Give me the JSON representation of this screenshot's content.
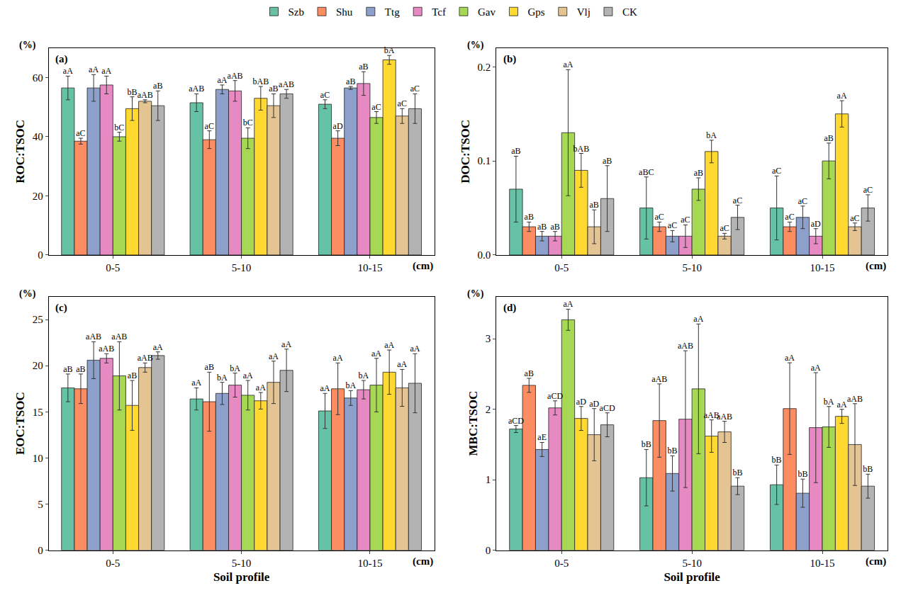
{
  "chart_data": [
    {
      "type": "bar",
      "title": "(a)",
      "legend": "top",
      "grid": false,
      "categories": [
        "0-5",
        "5-10",
        "10-15"
      ],
      "y_label": "ROC:TSOC",
      "annotations": [
        "(%)",
        "(cm)"
      ],
      "ylim": [
        0,
        70
      ],
      "yticks": [
        0,
        20,
        40,
        60
      ],
      "series": [
        {
          "name": "Szb",
          "color": "#66c2a5",
          "values": [
            56.5,
            51.5,
            51
          ],
          "errors": [
            4,
            3,
            1.5
          ],
          "letters": [
            "aA",
            "aAB",
            "aC"
          ]
        },
        {
          "name": "Shu",
          "color": "#fc8d62",
          "values": [
            38.5,
            39,
            39.5
          ],
          "errors": [
            1,
            3,
            2.5
          ],
          "letters": [
            "aC",
            "aC",
            "aD"
          ]
        },
        {
          "name": "Ttg",
          "color": "#8da0cb",
          "values": [
            56.5,
            56,
            56.5
          ],
          "errors": [
            4.5,
            1.5,
            0.5
          ],
          "letters": [
            "aA",
            "aA",
            "aB"
          ]
        },
        {
          "name": "Tcf",
          "color": "#e78ac3",
          "values": [
            57.5,
            55.5,
            58
          ],
          "errors": [
            3,
            3.5,
            4
          ],
          "letters": [
            "aA",
            "aAB",
            "aB"
          ]
        },
        {
          "name": "Gav",
          "color": "#a6d854",
          "values": [
            40,
            39.5,
            46.5
          ],
          "errors": [
            1.5,
            3.5,
            2
          ],
          "letters": [
            "bC",
            "bC",
            "aC"
          ]
        },
        {
          "name": "Gps",
          "color": "#ffd92f",
          "values": [
            49.5,
            53,
            66
          ],
          "errors": [
            4,
            4,
            1.5
          ],
          "letters": [
            "bB",
            "bAB",
            "bA"
          ]
        },
        {
          "name": "Vlj",
          "color": "#e5c494",
          "values": [
            52,
            50.5,
            47
          ],
          "errors": [
            0.5,
            4,
            2.5
          ],
          "letters": [
            "aAB",
            "aB",
            "aC"
          ]
        },
        {
          "name": "CK",
          "color": "#b3b3b3",
          "values": [
            50.5,
            54.5,
            49.5
          ],
          "errors": [
            5,
            1.5,
            5
          ],
          "letters": [
            "aB",
            "aAB",
            "aC"
          ]
        }
      ]
    },
    {
      "type": "bar",
      "title": "(b)",
      "grid": false,
      "categories": [
        "0-5",
        "5-10",
        "10-15"
      ],
      "y_label": "DOC:TSOC",
      "annotations": [
        "(%)",
        "(cm)"
      ],
      "ylim": [
        0,
        0.22
      ],
      "yticks": [
        {
          "value": 0,
          "label": "0.0"
        },
        0.1,
        0.2
      ],
      "series": [
        {
          "name": "Szb",
          "color": "#66c2a5",
          "values": [
            0.07,
            0.05,
            0.05
          ],
          "errors": [
            0.035,
            0.033,
            0.034
          ],
          "letters": [
            "aB",
            "aBC",
            "aC"
          ]
        },
        {
          "name": "Shu",
          "color": "#fc8d62",
          "values": [
            0.03,
            0.03,
            0.03
          ],
          "errors": [
            0.005,
            0.005,
            0.005
          ],
          "letters": [
            "aB",
            "aC",
            "aC"
          ]
        },
        {
          "name": "Ttg",
          "color": "#8da0cb",
          "values": [
            0.02,
            0.02,
            0.04
          ],
          "errors": [
            0.005,
            0.006,
            0.012
          ],
          "letters": [
            "aB",
            "aC",
            "aC"
          ]
        },
        {
          "name": "Tcf",
          "color": "#e78ac3",
          "values": [
            0.02,
            0.02,
            0.02
          ],
          "errors": [
            0.005,
            0.012,
            0.008
          ],
          "letters": [
            "aB",
            "aC",
            "aD"
          ]
        },
        {
          "name": "Gav",
          "color": "#a6d854",
          "values": [
            0.13,
            0.07,
            0.1
          ],
          "errors": [
            0.067,
            0.012,
            0.019
          ],
          "letters": [
            "aA",
            "aB",
            "aB"
          ]
        },
        {
          "name": "Gps",
          "color": "#ffd92f",
          "values": [
            0.09,
            0.11,
            0.15
          ],
          "errors": [
            0.018,
            0.012,
            0.014
          ],
          "letters": [
            "bAB",
            "bA",
            "aA"
          ]
        },
        {
          "name": "Vlj",
          "color": "#e5c494",
          "values": [
            0.03,
            0.02,
            0.03
          ],
          "errors": [
            0.018,
            0.003,
            0.004
          ],
          "letters": [
            "aB",
            "aC",
            "aC"
          ]
        },
        {
          "name": "CK",
          "color": "#b3b3b3",
          "values": [
            0.06,
            0.04,
            0.05
          ],
          "errors": [
            0.035,
            0.013,
            0.014
          ],
          "letters": [
            "aB",
            "aC",
            "aC"
          ]
        }
      ]
    },
    {
      "type": "bar",
      "title": "(c)",
      "grid": false,
      "categories": [
        "0-5",
        "5-10",
        "10-15"
      ],
      "x_label": "Soil profile",
      "y_label": "EOC:TSOC",
      "annotations": [
        "(%)",
        "(cm)"
      ],
      "ylim": [
        0,
        27.5
      ],
      "yticks": [
        0,
        5,
        10,
        15,
        20,
        25
      ],
      "series": [
        {
          "name": "Szb",
          "color": "#66c2a5",
          "values": [
            17.6,
            16.4,
            15.1
          ],
          "errors": [
            1.5,
            1.2,
            1.9
          ],
          "letters": [
            "aB",
            "aA",
            "aA"
          ]
        },
        {
          "name": "Shu",
          "color": "#fc8d62",
          "values": [
            17.5,
            16.1,
            17.5
          ],
          "errors": [
            1.6,
            3.2,
            2.8
          ],
          "letters": [
            "aB",
            "aB",
            "aA"
          ]
        },
        {
          "name": "Ttg",
          "color": "#8da0cb",
          "values": [
            20.6,
            17,
            16.5
          ],
          "errors": [
            2,
            1.2,
            0.8
          ],
          "letters": [
            "aAB",
            "bA",
            "bA"
          ]
        },
        {
          "name": "Tcf",
          "color": "#e78ac3",
          "values": [
            20.8,
            17.9,
            17.4
          ],
          "errors": [
            0.5,
            1.3,
            1
          ],
          "letters": [
            "aAB",
            "bA",
            "bA"
          ]
        },
        {
          "name": "Gav",
          "color": "#a6d854",
          "values": [
            18.9,
            16.8,
            17.9
          ],
          "errors": [
            3.7,
            1.6,
            2.9
          ],
          "letters": [
            "aAB",
            "aA",
            "aA"
          ]
        },
        {
          "name": "Gps",
          "color": "#ffd92f",
          "values": [
            15.7,
            16.2,
            19.3
          ],
          "errors": [
            2.7,
            0.9,
            2.4
          ],
          "letters": [
            "aB",
            "aA",
            "aA"
          ]
        },
        {
          "name": "Vlj",
          "color": "#e5c494",
          "values": [
            19.8,
            18.2,
            17.6
          ],
          "errors": [
            0.5,
            2.3,
            2
          ],
          "letters": [
            "aAB",
            "aA",
            "aA"
          ]
        },
        {
          "name": "CK",
          "color": "#b3b3b3",
          "values": [
            21.1,
            19.5,
            18.1
          ],
          "errors": [
            0.4,
            2.3,
            3.2
          ],
          "letters": [
            "aA",
            "aA",
            "aA"
          ]
        }
      ]
    },
    {
      "type": "bar",
      "title": "(d)",
      "grid": false,
      "categories": [
        "0-5",
        "5-10",
        "10-15"
      ],
      "x_label": "Soil profile",
      "y_label": "MBC:TSOC",
      "annotations": [
        "(%)",
        "(cm)"
      ],
      "ylim": [
        0,
        3.6
      ],
      "yticks": [
        0,
        1,
        2,
        3
      ],
      "series": [
        {
          "name": "Szb",
          "color": "#66c2a5",
          "values": [
            1.72,
            1.03,
            0.93
          ],
          "errors": [
            0.05,
            0.4,
            0.28
          ],
          "letters": [
            "aCD",
            "bB",
            "bB"
          ]
        },
        {
          "name": "Shu",
          "color": "#fc8d62",
          "values": [
            2.34,
            1.84,
            2.01
          ],
          "errors": [
            0.1,
            0.52,
            0.65
          ],
          "letters": [
            "aB",
            "aAB",
            "aA"
          ]
        },
        {
          "name": "Ttg",
          "color": "#8da0cb",
          "values": [
            1.43,
            1.09,
            0.81
          ],
          "errors": [
            0.1,
            0.25,
            0.2
          ],
          "letters": [
            "aE",
            "bB",
            "bB"
          ]
        },
        {
          "name": "Tcf",
          "color": "#e78ac3",
          "values": [
            2.02,
            1.86,
            1.74
          ],
          "errors": [
            0.1,
            0.97,
            0.78
          ],
          "letters": [
            "aCD",
            "aAB",
            "aA"
          ]
        },
        {
          "name": "Gav",
          "color": "#a6d854",
          "values": [
            3.27,
            2.29,
            1.75
          ],
          "errors": [
            0.15,
            0.92,
            0.29
          ],
          "letters": [
            "aA",
            "aA",
            "bA"
          ]
        },
        {
          "name": "Gps",
          "color": "#ffd92f",
          "values": [
            1.87,
            1.62,
            1.9
          ],
          "errors": [
            0.17,
            0.23,
            0.1
          ],
          "letters": [
            "aD",
            "aAB",
            "aA"
          ]
        },
        {
          "name": "Vlj",
          "color": "#e5c494",
          "values": [
            1.64,
            1.68,
            1.5
          ],
          "errors": [
            0.37,
            0.15,
            0.58
          ],
          "letters": [
            "aD",
            "aAB",
            "aAB"
          ]
        },
        {
          "name": "CK",
          "color": "#b3b3b3",
          "values": [
            1.78,
            0.91,
            0.91
          ],
          "errors": [
            0.17,
            0.12,
            0.17
          ],
          "letters": [
            "aCD",
            "bB",
            "bB"
          ]
        }
      ]
    }
  ]
}
